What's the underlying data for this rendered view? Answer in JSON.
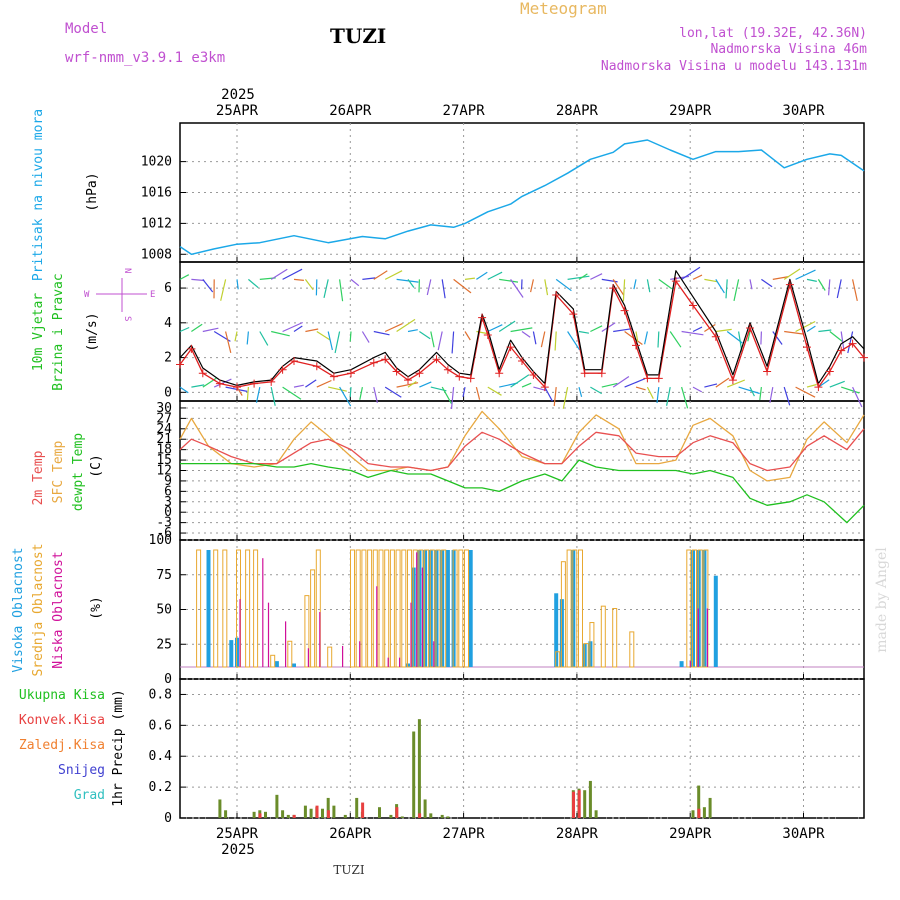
{
  "header": {
    "model_label": "Model",
    "model_name": "wrf-nmm_v3.9.1  e3km",
    "station": "TUZI",
    "title": "Meteogram",
    "lonlat": "lon,lat (19.32E, 42.36N)",
    "elevation": "Nadmorska Visina 46m",
    "model_elevation": "Nadmorska Visina u modelu 143.131m",
    "footer_station": "TUZI",
    "watermark": "made by Angel"
  },
  "time_axis": {
    "year": "2025",
    "tick_labels": [
      "25APR",
      "26APR",
      "27APR",
      "28APR",
      "29APR",
      "30APR"
    ],
    "day_range": [
      0,
      6
    ]
  },
  "colors": {
    "pressure": "#1ba8e8",
    "wind_speed": "#000000",
    "wind_model": "#e02020",
    "temp2m": "#e85050",
    "sfc_temp": "#e8a840",
    "dewpoint": "#20c020",
    "cloud_high": "#20a0e0",
    "cloud_mid": "#e8a830",
    "cloud_low": "#d0109a",
    "precip_total": "#6a8c2a",
    "precip_conv": "#e84040",
    "precip_frz": "#f08030",
    "snow": "#4040d0",
    "graupel": "#30c0c0",
    "label_purple": "#c050d0",
    "label_gold": "#e8b860",
    "grid": "#999999"
  },
  "panels": {
    "pressure": {
      "ylabel_main": "Pritisak na nivou mora",
      "units": "(hPa)",
      "ticks": [
        "1008",
        "1012",
        "1016",
        "1020"
      ]
    },
    "wind": {
      "ylabel_a": "10m Vjetar",
      "ylabel_b": "Brzina i Pravac",
      "units": "(m/s)",
      "ticks": [
        "0",
        "2",
        "4",
        "6"
      ],
      "compass_n": "N",
      "compass_s": "S",
      "compass_w": "W",
      "compass_e": "E"
    },
    "temperature": {
      "ylabel_a": "2m Temp",
      "ylabel_b": "SFC Temp",
      "ylabel_c": "dewpt Temp",
      "units": "(C)",
      "ticks": [
        "-6",
        "-3",
        "0",
        "3",
        "6",
        "9",
        "12",
        "15",
        "18",
        "21",
        "24",
        "27",
        "30"
      ]
    },
    "clouds": {
      "ylabel_a": "Visoka Oblacnost",
      "ylabel_b": "Srednja Oblacnost",
      "ylabel_c": "Niska Oblacnost",
      "units": "(%)",
      "ticks": [
        "0",
        "25",
        "50",
        "75",
        "100"
      ]
    },
    "precip": {
      "legend": [
        "Ukupna Kisa",
        "Konvek.Kisa",
        "Zaledj.Kisa",
        "Snijeg",
        "Grad"
      ],
      "ylabel": "1hr Precip (mm)",
      "ticks": [
        "0",
        "0.2",
        "0.4",
        "0.6",
        "0.8"
      ]
    }
  },
  "chart_data": [
    {
      "type": "line",
      "title": "Pritisak na nivou mora",
      "ylabel": "(hPa)",
      "ylim": [
        1007,
        1025
      ],
      "x": [
        0,
        0.1,
        0.3,
        0.5,
        0.7,
        1.0,
        1.3,
        1.6,
        1.8,
        2.0,
        2.2,
        2.4,
        2.5,
        2.7,
        2.9,
        3.0,
        3.2,
        3.4,
        3.6,
        3.8,
        3.9,
        4.1,
        4.3,
        4.5,
        4.7,
        4.9,
        5.1,
        5.3,
        5.5,
        5.7,
        5.8,
        6.0
      ],
      "series": [
        {
          "name": "pressure",
          "values": [
            1009.0,
            1008.0,
            1008.7,
            1009.3,
            1009.5,
            1010.4,
            1009.5,
            1010.3,
            1010.0,
            1011.0,
            1011.8,
            1011.5,
            1012.0,
            1013.5,
            1014.5,
            1015.5,
            1016.9,
            1018.5,
            1020.3,
            1021.2,
            1022.3,
            1022.8,
            1021.5,
            1020.3,
            1021.3,
            1021.3,
            1021.5,
            1019.2,
            1020.3,
            1021.0,
            1020.8,
            1018.8
          ]
        }
      ]
    },
    {
      "type": "line",
      "title": "10m Vjetar Brzina i Pravac",
      "ylabel": "(m/s)",
      "ylim": [
        -0.5,
        7.5
      ],
      "x": [
        0,
        0.1,
        0.2,
        0.35,
        0.5,
        0.65,
        0.8,
        0.9,
        1.0,
        1.2,
        1.35,
        1.5,
        1.7,
        1.8,
        1.9,
        2.0,
        2.1,
        2.25,
        2.35,
        2.45,
        2.55,
        2.65,
        2.7,
        2.8,
        2.9,
        3.0,
        3.1,
        3.2,
        3.3,
        3.45,
        3.55,
        3.7,
        3.8,
        3.9,
        4.0,
        4.1,
        4.2,
        4.35,
        4.5,
        4.7,
        4.85,
        5.0,
        5.15,
        5.35,
        5.5,
        5.6,
        5.7,
        5.8,
        5.9,
        6.0
      ],
      "series": [
        {
          "name": "wind speed",
          "values": [
            2.0,
            2.7,
            1.4,
            0.7,
            0.4,
            0.6,
            0.7,
            1.5,
            2.0,
            1.8,
            1.1,
            1.3,
            2.0,
            2.3,
            1.4,
            0.9,
            1.3,
            2.3,
            1.6,
            1.1,
            1.0,
            4.5,
            3.6,
            1.3,
            3.0,
            2.0,
            1.2,
            0.5,
            5.8,
            4.8,
            1.3,
            1.3,
            6.2,
            5.0,
            3.0,
            1.0,
            1.0,
            7.0,
            5.5,
            3.5,
            1.0,
            4.0,
            1.5,
            6.5,
            3.0,
            0.5,
            1.5,
            2.8,
            3.2,
            2.5
          ]
        },
        {
          "name": "wind model",
          "values": [
            1.6,
            2.5,
            1.1,
            0.5,
            0.3,
            0.5,
            0.6,
            1.3,
            1.8,
            1.5,
            0.9,
            1.1,
            1.7,
            1.9,
            1.2,
            0.7,
            1.1,
            1.9,
            1.3,
            0.9,
            0.8,
            4.3,
            3.3,
            1.1,
            2.6,
            1.8,
            1.0,
            0.3,
            5.6,
            4.5,
            1.1,
            1.1,
            6.0,
            4.7,
            2.7,
            0.8,
            0.8,
            6.4,
            5.0,
            3.2,
            0.7,
            3.7,
            1.2,
            6.2,
            2.6,
            0.3,
            1.2,
            2.4,
            2.8,
            2.0
          ]
        }
      ]
    },
    {
      "type": "line",
      "title": "2m Temp / SFC Temp / dewpt Temp",
      "ylabel": "(C)",
      "ylim": [
        -8,
        32
      ],
      "x": [
        0,
        0.1,
        0.25,
        0.45,
        0.65,
        0.85,
        1.0,
        1.15,
        1.3,
        1.5,
        1.65,
        1.85,
        2.0,
        2.2,
        2.35,
        2.5,
        2.65,
        2.8,
        3.0,
        3.2,
        3.35,
        3.5,
        3.65,
        3.85,
        4.0,
        4.2,
        4.35,
        4.5,
        4.65,
        4.85,
        5.0,
        5.15,
        5.35,
        5.5,
        5.65,
        5.85,
        6.0
      ],
      "series": [
        {
          "name": "2m Temp",
          "values": [
            18,
            21,
            19,
            16,
            14,
            14,
            17,
            20,
            21,
            18,
            14,
            13,
            13,
            12,
            13,
            19,
            23,
            21,
            17,
            14,
            14,
            19,
            23,
            22,
            17,
            16,
            16,
            20,
            22,
            20,
            14,
            12,
            13,
            19,
            22,
            18,
            24
          ]
        },
        {
          "name": "SFC Temp",
          "values": [
            21,
            27,
            19,
            14,
            13,
            14,
            21,
            26,
            22,
            16,
            12,
            12,
            13,
            12,
            13,
            22,
            29,
            24,
            16,
            14,
            14,
            23,
            28,
            24,
            14,
            14,
            15,
            25,
            27,
            22,
            12,
            9,
            10,
            21,
            26,
            20,
            28
          ]
        },
        {
          "name": "dewpt Temp",
          "values": [
            14,
            14,
            14,
            14,
            14,
            13,
            13,
            14,
            13,
            12,
            10,
            12,
            11,
            11,
            9,
            7,
            7,
            6,
            9,
            11,
            9,
            15,
            13,
            12,
            12,
            12,
            12,
            11,
            12,
            10,
            4,
            2,
            3,
            5,
            3,
            -3,
            2
          ]
        }
      ]
    },
    {
      "type": "bar",
      "title": "Oblacnost",
      "ylabel": "(%)",
      "ylim": [
        0,
        100
      ],
      "series": [
        {
          "name": "Visoka Oblacnost",
          "x": [
            0.25,
            0.45,
            0.5,
            0.85,
            1.0,
            2.0,
            2.05,
            2.1,
            2.15,
            2.2,
            2.25,
            2.3,
            2.35,
            2.4,
            2.55,
            3.3,
            3.35,
            3.45,
            3.55,
            3.6,
            4.4,
            4.5,
            4.55,
            4.6,
            4.7
          ],
          "values": [
            100,
            23,
            25,
            5,
            3,
            3,
            85,
            100,
            100,
            100,
            100,
            100,
            100,
            100,
            100,
            63,
            58,
            100,
            20,
            22,
            5,
            100,
            100,
            100,
            78
          ]
        },
        {
          "name": "Srednja Oblacnost",
          "x": [
            0.15,
            0.3,
            0.38,
            0.5,
            0.58,
            0.65,
            0.8,
            0.95,
            1.1,
            1.15,
            1.2,
            1.3,
            1.5,
            1.55,
            1.6,
            1.65,
            1.7,
            1.75,
            1.8,
            1.85,
            1.9,
            1.95,
            2.0,
            2.05,
            2.1,
            2.15,
            2.2,
            2.25,
            2.3,
            2.4,
            2.45,
            2.5,
            3.3,
            3.35,
            3.4,
            3.45,
            3.5,
            3.55,
            3.6,
            3.7,
            3.8,
            3.95,
            4.45,
            4.5,
            4.55,
            4.6
          ],
          "values": [
            100,
            100,
            100,
            100,
            100,
            100,
            10,
            22,
            61,
            83,
            100,
            17,
            100,
            100,
            100,
            100,
            100,
            100,
            100,
            100,
            100,
            100,
            100,
            100,
            100,
            100,
            100,
            100,
            100,
            100,
            100,
            100,
            13,
            90,
            100,
            100,
            100,
            20,
            38,
            52,
            50,
            30,
            100,
            100,
            100,
            100
          ]
        },
        {
          "name": "Niska Oblacnost",
          "x": [
            0.5,
            0.7,
            0.75,
            0.9,
            1.1,
            1.2,
            1.4,
            1.55,
            1.7,
            1.8,
            1.9,
            2.0,
            2.05,
            2.1,
            2.2,
            4.45,
            4.52,
            4.6
          ],
          "values": [
            58,
            93,
            55,
            39,
            16,
            47,
            18,
            22,
            69,
            8,
            8,
            55,
            98,
            85,
            22,
            5,
            50,
            50
          ]
        }
      ]
    },
    {
      "type": "bar",
      "title": "1hr Precip (mm)",
      "ylabel": "1hr Precip (mm)",
      "ylim": [
        0,
        0.9
      ],
      "series": [
        {
          "name": "Ukupna Kisa",
          "x": [
            0.35,
            0.4,
            0.65,
            0.7,
            0.75,
            0.85,
            0.9,
            0.95,
            1.0,
            1.1,
            1.15,
            1.2,
            1.25,
            1.3,
            1.35,
            1.45,
            1.55,
            1.6,
            1.75,
            1.85,
            1.9,
            1.95,
            2.05,
            2.1,
            2.15,
            2.2,
            2.3,
            2.35,
            3.45,
            3.5,
            3.55,
            3.6,
            3.65,
            4.5,
            4.55,
            4.6,
            4.65
          ],
          "values": [
            0.12,
            0.05,
            0.04,
            0.05,
            0.04,
            0.15,
            0.05,
            0.02,
            0.02,
            0.08,
            0.06,
            0.07,
            0.06,
            0.13,
            0.08,
            0.02,
            0.13,
            0.04,
            0.07,
            0.02,
            0.09,
            0.01,
            0.56,
            0.64,
            0.12,
            0.03,
            0.02,
            0.01,
            0.18,
            0.19,
            0.18,
            0.24,
            0.05,
            0.05,
            0.21,
            0.07,
            0.13
          ]
        },
        {
          "name": "Konvek.Kisa",
          "x": [
            0.68,
            0.98,
            1.18,
            1.28,
            1.58,
            1.88,
            2.08,
            3.43,
            3.48,
            4.53
          ],
          "values": [
            0.03,
            0.02,
            0.08,
            0.05,
            0.1,
            0.07,
            0.03,
            0.17,
            0.18,
            0.06
          ]
        },
        {
          "name": "Zaledj.Kisa",
          "x": [],
          "values": []
        },
        {
          "name": "Snijeg",
          "x": [],
          "values": []
        },
        {
          "name": "Grad",
          "x": [],
          "values": []
        }
      ]
    }
  ]
}
